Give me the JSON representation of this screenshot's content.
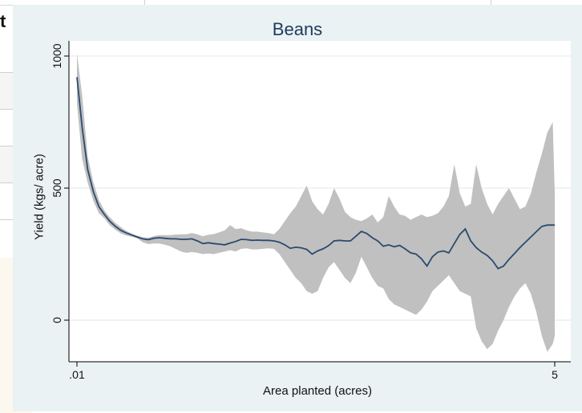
{
  "background": {
    "heading_fragment": "t"
  },
  "chart_data": {
    "type": "line",
    "title": "Beans",
    "xlabel": "Area planted (acres)",
    "ylabel": "Yield (kgs/ acre)",
    "ylim": [
      -130,
      1060
    ],
    "yticks": [
      0,
      500,
      1000
    ],
    "xticks": [
      ".01",
      "5"
    ],
    "x_scale": "log",
    "xlim": [
      0.01,
      5
    ],
    "grid": "horizontal",
    "legend": "none",
    "colors": {
      "line": "#2b4a6f",
      "band": "#c0c0c0",
      "plot_bg": "#ffffff",
      "outer_bg": "#eaf2f3",
      "title": "#1f3b60"
    },
    "series": [
      {
        "x": [
          0.01,
          0.0107,
          0.0115,
          0.0124,
          0.0133,
          0.0143,
          0.0153,
          0.0165,
          0.0177,
          0.019,
          0.0204,
          0.0219,
          0.0235,
          0.0253,
          0.0271,
          0.0291,
          0.0313,
          0.0336,
          0.036,
          0.0387,
          0.0415,
          0.0446,
          0.0479,
          0.0514,
          0.0552,
          0.0593,
          0.0636,
          0.0683,
          0.0734,
          0.0788,
          0.0846,
          0.0908,
          0.0975,
          0.1047,
          0.1124,
          0.1207,
          0.1296,
          0.1391,
          0.1494,
          0.1604,
          0.1722,
          0.1849,
          0.1985,
          0.2131,
          0.2289,
          0.2457,
          0.2638,
          0.2833,
          0.3041,
          0.3266,
          0.3506,
          0.3765,
          0.4042,
          0.434,
          0.466,
          0.5003,
          0.5372,
          0.5768,
          0.6193,
          0.665,
          0.714,
          0.7666,
          0.8231,
          0.8838,
          0.949,
          1.0189,
          1.094,
          1.1747,
          1.2613,
          1.3543,
          1.4541,
          1.5613,
          1.6764,
          1.7999,
          1.9326,
          2.0751,
          2.2281,
          2.3923,
          2.5687,
          2.758,
          2.9613,
          3.1796,
          3.414,
          3.6657,
          3.9359,
          4.226,
          4.5376,
          4.872,
          5.0
        ],
        "yield": [
          920,
          730,
          570,
          485,
          430,
          400,
          375,
          355,
          340,
          330,
          322,
          315,
          308,
          305,
          310,
          312,
          310,
          308,
          308,
          306,
          306,
          308,
          300,
          290,
          293,
          290,
          288,
          285,
          292,
          298,
          306,
          305,
          302,
          303,
          302,
          302,
          300,
          295,
          285,
          272,
          276,
          274,
          268,
          250,
          262,
          270,
          282,
          300,
          302,
          300,
          300,
          318,
          336,
          328,
          312,
          300,
          280,
          285,
          278,
          283,
          270,
          255,
          250,
          232,
          205,
          240,
          258,
          262,
          255,
          290,
          325,
          345,
          300,
          275,
          258,
          245,
          225,
          195,
          205,
          230,
          252,
          275,
          295,
          315,
          335,
          355,
          360,
          360,
          360
        ],
        "ci_upper": [
          1010,
          850,
          620,
          520,
          455,
          415,
          390,
          368,
          352,
          338,
          328,
          320,
          314,
          312,
          318,
          322,
          322,
          322,
          324,
          325,
          325,
          330,
          325,
          318,
          323,
          326,
          332,
          340,
          360,
          345,
          348,
          340,
          335,
          335,
          332,
          330,
          325,
          345,
          375,
          405,
          430,
          470,
          510,
          450,
          420,
          400,
          440,
          500,
          460,
          410,
          390,
          380,
          375,
          385,
          400,
          370,
          390,
          470,
          430,
          400,
          395,
          380,
          390,
          400,
          390,
          395,
          405,
          430,
          470,
          590,
          480,
          430,
          440,
          590,
          500,
          440,
          400,
          440,
          470,
          500,
          460,
          420,
          430,
          480,
          560,
          630,
          710,
          750,
          480
        ],
        "ci_lower": [
          820,
          610,
          520,
          450,
          405,
          385,
          360,
          342,
          328,
          320,
          316,
          310,
          295,
          288,
          290,
          290,
          286,
          280,
          270,
          260,
          255,
          258,
          255,
          250,
          252,
          250,
          255,
          260,
          265,
          260,
          270,
          272,
          268,
          268,
          270,
          272,
          270,
          250,
          220,
          190,
          160,
          140,
          110,
          100,
          110,
          160,
          200,
          220,
          190,
          160,
          140,
          180,
          240,
          200,
          160,
          130,
          120,
          80,
          60,
          50,
          40,
          30,
          20,
          40,
          70,
          110,
          130,
          150,
          170,
          140,
          110,
          100,
          90,
          -30,
          -80,
          -110,
          -90,
          -40,
          0,
          50,
          90,
          120,
          140,
          100,
          30,
          -60,
          -120,
          -90,
          -60
        ]
      }
    ]
  }
}
